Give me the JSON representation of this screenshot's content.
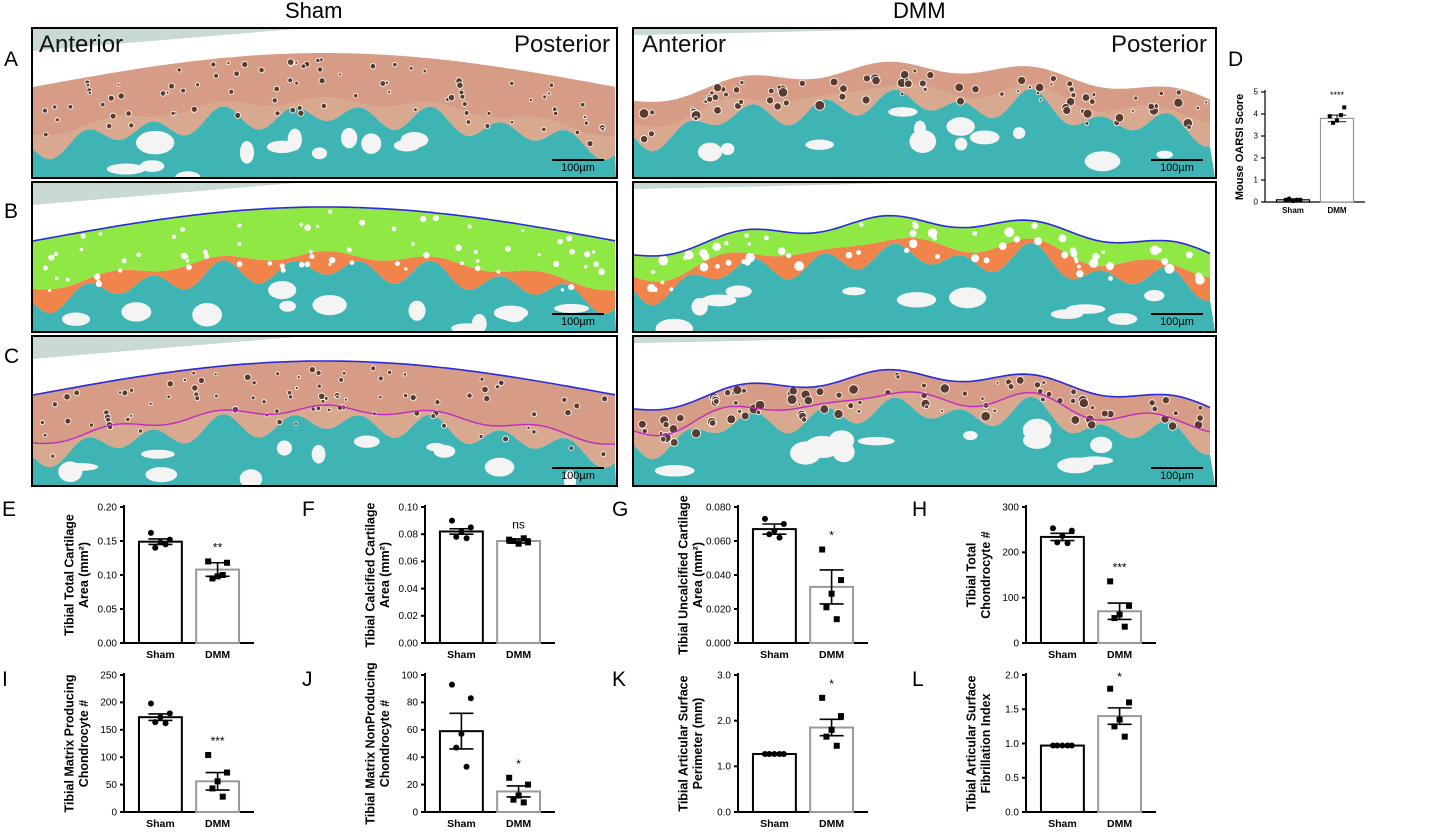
{
  "columns": {
    "left": "Sham",
    "right": "DMM"
  },
  "panel_letters": {
    "a": "A",
    "b": "B",
    "c": "C",
    "d": "D",
    "e": "E",
    "f": "F",
    "g": "G",
    "h": "H",
    "i": "I",
    "j": "J",
    "k": "K",
    "l": "L"
  },
  "micrographs": {
    "anterior": "Anterior",
    "posterior": "Posterior",
    "scalebar": "100µm"
  },
  "colors": {
    "cartilage_stain": "#c97b5c",
    "bone_stain": "#3fb4b4",
    "uncalcified_overlay": "#8fe844",
    "calcified_overlay": "#f0844a",
    "surface_line": "#2b2bd6",
    "tidemark_line": "#c02bc0",
    "sham_bar": "#000000",
    "dmm_bar": "#999999"
  },
  "chart_data": [
    {
      "panel": "D",
      "type": "bar",
      "categories": [
        "Sham",
        "DMM"
      ],
      "values": [
        0.1,
        3.8
      ],
      "errors": [
        0.05,
        0.15
      ],
      "points": [
        [
          0.1,
          0.1,
          0.05,
          0.15,
          0.1
        ],
        [
          3.9,
          4.3,
          3.7,
          3.6,
          3.95
        ]
      ],
      "ylabel": "Mouse OARSI Score",
      "ylim": [
        0,
        5
      ],
      "yticks": [
        "0",
        "1",
        "2",
        "3",
        "4",
        "5"
      ],
      "significance": "****"
    },
    {
      "panel": "E",
      "type": "bar",
      "categories": [
        "Sham",
        "DMM"
      ],
      "values": [
        0.149,
        0.108
      ],
      "errors": [
        0.004,
        0.01
      ],
      "points": [
        [
          0.162,
          0.152,
          0.148,
          0.14,
          0.145
        ],
        [
          0.12,
          0.118,
          0.098,
          0.095,
          0.1
        ]
      ],
      "ylabel": "Tibial Total Cartilage Area (mm²)",
      "ylim": [
        0,
        0.2
      ],
      "yticks": [
        "0.00",
        "0.05",
        "0.10",
        "0.15",
        "0.20"
      ],
      "significance": "**"
    },
    {
      "panel": "F",
      "type": "bar",
      "categories": [
        "Sham",
        "DMM"
      ],
      "values": [
        0.082,
        0.075
      ],
      "errors": [
        0.002,
        0.0015
      ],
      "points": [
        [
          0.09,
          0.085,
          0.082,
          0.078,
          0.077
        ],
        [
          0.076,
          0.074,
          0.073,
          0.075,
          0.077
        ]
      ],
      "ylabel": "Tibial Calcified Cartilage Area (mm²)",
      "ylim": [
        0,
        0.1
      ],
      "yticks": [
        "0.00",
        "0.02",
        "0.04",
        "0.06",
        "0.08",
        "0.10"
      ],
      "significance": "ns"
    },
    {
      "panel": "G",
      "type": "bar",
      "categories": [
        "Sham",
        "DMM"
      ],
      "values": [
        0.067,
        0.033
      ],
      "errors": [
        0.003,
        0.01
      ],
      "points": [
        [
          0.073,
          0.07,
          0.066,
          0.064,
          0.062
        ],
        [
          0.055,
          0.037,
          0.029,
          0.021,
          0.014
        ]
      ],
      "ylabel": "Tibial Uncalcified Cartilage Area (mm²)",
      "ylim": [
        0,
        0.08
      ],
      "yticks": [
        "0.000",
        "0.020",
        "0.040",
        "0.060",
        "0.080"
      ],
      "significance": "*"
    },
    {
      "panel": "H",
      "type": "bar",
      "categories": [
        "Sham",
        "DMM"
      ],
      "values": [
        234,
        70
      ],
      "errors": [
        8,
        18
      ],
      "points": [
        [
          253,
          248,
          236,
          222,
          220
        ],
        [
          136,
          82,
          63,
          55,
          36
        ]
      ],
      "ylabel": "Tibial Total Chondrocyte #",
      "ylim": [
        0,
        300
      ],
      "yticks": [
        "0",
        "100",
        "200",
        "300"
      ],
      "significance": "***"
    },
    {
      "panel": "I",
      "type": "bar",
      "categories": [
        "Sham",
        "DMM"
      ],
      "values": [
        173,
        56
      ],
      "errors": [
        6,
        16
      ],
      "points": [
        [
          198,
          180,
          173,
          164,
          162
        ],
        [
          104,
          72,
          56,
          43,
          28
        ]
      ],
      "ylabel": "Tibial Matrix Producing Chondrocyte #",
      "ylim": [
        0,
        250
      ],
      "yticks": [
        "0",
        "50",
        "100",
        "150",
        "200",
        "250"
      ],
      "significance": "***"
    },
    {
      "panel": "J",
      "type": "bar",
      "categories": [
        "Sham",
        "DMM"
      ],
      "values": [
        59,
        15
      ],
      "errors": [
        13,
        4
      ],
      "points": [
        [
          93,
          83,
          57,
          47,
          33
        ],
        [
          25,
          20,
          12,
          9,
          7
        ]
      ],
      "ylabel": "Tibial Matrix NonProducing Chondrocyte #",
      "ylim": [
        0,
        100
      ],
      "yticks": [
        "0",
        "20",
        "40",
        "60",
        "80",
        "100"
      ],
      "significance": "*"
    },
    {
      "panel": "K",
      "type": "bar",
      "categories": [
        "Sham",
        "DMM"
      ],
      "values": [
        1.27,
        1.85
      ],
      "errors": [
        0.02,
        0.18
      ],
      "points": [
        [
          1.27,
          1.27,
          1.27,
          1.27,
          1.27
        ],
        [
          2.5,
          2.1,
          1.8,
          1.65,
          1.45
        ]
      ],
      "ylabel": "Tibial Articular Surface Perimeter (mm)",
      "ylim": [
        0,
        3
      ],
      "yticks": [
        "0.0",
        "1.0",
        "2.0",
        "3.0"
      ],
      "significance": "*"
    },
    {
      "panel": "L",
      "type": "bar",
      "categories": [
        "Sham",
        "DMM"
      ],
      "values": [
        0.97,
        1.4
      ],
      "errors": [
        0.01,
        0.12
      ],
      "points": [
        [
          0.97,
          0.97,
          0.97,
          0.97,
          0.97
        ],
        [
          1.8,
          1.6,
          1.35,
          1.25,
          1.1
        ]
      ],
      "ylabel": "Tibial Articular Surface Fibrillation Index",
      "ylim": [
        0,
        2
      ],
      "yticks": [
        "0.0",
        "0.5",
        "1.0",
        "1.5",
        "2.0"
      ],
      "significance": "*"
    }
  ]
}
